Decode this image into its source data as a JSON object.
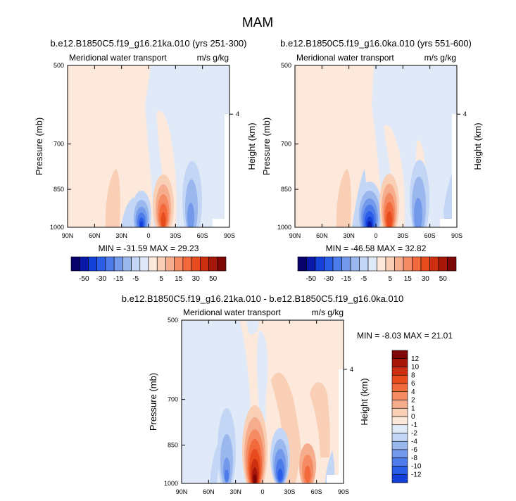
{
  "page": {
    "title": "MAM"
  },
  "panels": [
    {
      "title": "b.e12.B1850C5.f19_g16.21ka.010 (yrs 251-300)",
      "left_label": "Meridional water transport",
      "right_label": "m/s g/kg",
      "ylabel": "Pressure (mb)",
      "ylabel_right": "Height (km)",
      "stats": "MIN = -31.59  MAX = 29.23"
    },
    {
      "title": "b.e12.B1850C5.f19_g16.0ka.010 (yrs 551-600)",
      "left_label": "Meridional water transport",
      "right_label": "m/s g/kg",
      "ylabel": "Pressure (mb)",
      "ylabel_right": "Height (km)",
      "stats": "MIN = -46.58  MAX = 32.82"
    },
    {
      "title": "b.e12.B1850C5.f19_g16.21ka.010 - b.e12.B1850C5.f19_g16.0ka.010",
      "left_label": "Meridional water transport",
      "right_label": "m/s g/kg",
      "ylabel": "Pressure (mb)",
      "ylabel_right": "Height (km)",
      "stats": "MIN =  -8.03  MAX = 21.01"
    }
  ],
  "chart_data": [
    {
      "type": "heatmap",
      "title": "b.e12.B1850C5.f19_g16.21ka.010 (yrs 251-300)",
      "xlabel": "",
      "ylabel": "Pressure (mb)",
      "ylabel_right": "Height (km)",
      "x_ticks": [
        "90N",
        "60N",
        "30N",
        "0",
        "30S",
        "60S",
        "90S"
      ],
      "y_ticks": [
        500,
        700,
        850,
        1000
      ],
      "y_right_ticks": [
        4
      ],
      "xlim": [
        90,
        -90
      ],
      "ylim": [
        1000,
        500
      ],
      "min": -31.59,
      "max": 29.23,
      "features": [
        {
          "lat": 60,
          "p_top": 700,
          "p_bot": 1000,
          "value": 3
        },
        {
          "lat": 25,
          "p_top": 760,
          "p_bot": 1000,
          "value": 4
        },
        {
          "lat": 5,
          "p_top": 840,
          "p_bot": 1000,
          "value": -30
        },
        {
          "lat": -12,
          "p_top": 790,
          "p_bot": 1000,
          "value": 29
        },
        {
          "lat": -40,
          "p_top": 780,
          "p_bot": 1000,
          "value": -8
        }
      ]
    },
    {
      "type": "heatmap",
      "title": "b.e12.B1850C5.f19_g16.0ka.010 (yrs 551-600)",
      "xlabel": "",
      "ylabel": "Pressure (mb)",
      "ylabel_right": "Height (km)",
      "x_ticks": [
        "90N",
        "60N",
        "30N",
        "0",
        "30S",
        "60S",
        "90S"
      ],
      "y_ticks": [
        500,
        700,
        850,
        1000
      ],
      "y_right_ticks": [
        4
      ],
      "xlim": [
        90,
        -90
      ],
      "ylim": [
        1000,
        500
      ],
      "min": -46.58,
      "max": 32.82,
      "features": [
        {
          "lat": 60,
          "p_top": 700,
          "p_bot": 1000,
          "value": 3
        },
        {
          "lat": 22,
          "p_top": 760,
          "p_bot": 1000,
          "value": -5
        },
        {
          "lat": 5,
          "p_top": 830,
          "p_bot": 1000,
          "value": -45
        },
        {
          "lat": -12,
          "p_top": 790,
          "p_bot": 1000,
          "value": 32
        },
        {
          "lat": -40,
          "p_top": 790,
          "p_bot": 1000,
          "value": -10
        }
      ]
    },
    {
      "type": "heatmap",
      "title": "b.e12.B1850C5.f19_g16.21ka.010 - b.e12.B1850C5.f19_g16.0ka.010",
      "xlabel": "",
      "ylabel": "Pressure (mb)",
      "ylabel_right": "Height (km)",
      "x_ticks": [
        "90N",
        "60N",
        "30N",
        "0",
        "30S",
        "60S",
        "90S"
      ],
      "y_ticks": [
        500,
        700,
        850,
        1000
      ],
      "y_right_ticks": [
        4
      ],
      "xlim": [
        90,
        -90
      ],
      "ylim": [
        1000,
        500
      ],
      "min": -8.03,
      "max": 21.01,
      "features": [
        {
          "lat": 32,
          "p_top": 800,
          "p_bot": 1000,
          "value": -3
        },
        {
          "lat": 5,
          "p_top": 800,
          "p_bot": 1000,
          "value": 20
        },
        {
          "lat": -15,
          "p_top": 800,
          "p_bot": 1000,
          "value": -8
        },
        {
          "lat": -55,
          "p_top": 800,
          "p_bot": 1000,
          "value": 4
        }
      ]
    }
  ],
  "colorbars": {
    "horizontal": {
      "levels": [
        -50,
        -45,
        -40,
        -35,
        -30,
        -25,
        -20,
        -15,
        -10,
        -5,
        0,
        5,
        10,
        15,
        20,
        25,
        30,
        35,
        40,
        45,
        50
      ],
      "labels": [
        "-50",
        "-30",
        "-15",
        "-5",
        "5",
        "15",
        "30",
        "50"
      ]
    },
    "vertical": {
      "labels": [
        "12",
        "10",
        "8",
        "6",
        "4",
        "2",
        "1",
        "0",
        "-1",
        "-2",
        "-4",
        "-6",
        "-8",
        "-10",
        "-12"
      ]
    },
    "colors": [
      "#08006b",
      "#0a1aa8",
      "#1340d8",
      "#2a5de8",
      "#4d7be9",
      "#7399ea",
      "#9ab7ee",
      "#c3d6f5",
      "#dfe9f8",
      "#fde9dc",
      "#f9cfb5",
      "#f6ad8d",
      "#f48b63",
      "#f26a3c",
      "#e84b1e",
      "#cc3011",
      "#a8180a",
      "#7c0705"
    ]
  }
}
